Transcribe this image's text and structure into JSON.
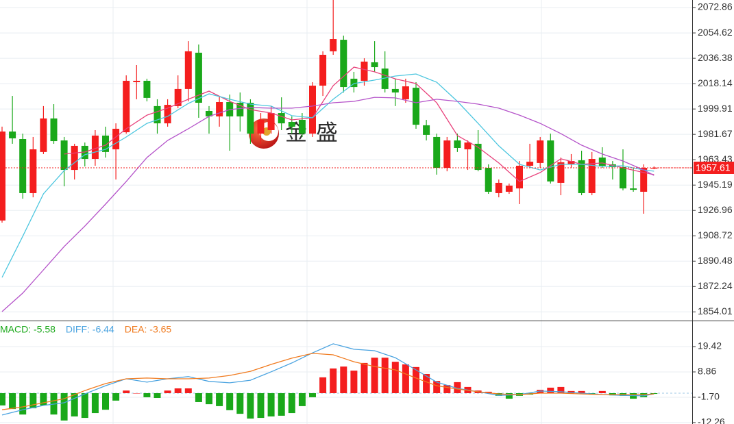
{
  "chart_data": [
    {
      "type": "candlestick",
      "up_color": "#f41e1e",
      "down_color": "#1aa81a",
      "open": [
        1919.7,
        1983.7,
        1978.3,
        1939.4,
        1969.0,
        1993.1,
        1977.3,
        1956.1,
        1973.4,
        1964.0,
        1980.8,
        1970.9,
        1983.2,
        2019.2,
        2020.2,
        2002.0,
        1989.6,
        2002.0,
        2014.3,
        2040.4,
        1998.5,
        1994.6,
        2004.9,
        2004.4,
        2004.4,
        1982.2,
        1984.7,
        1997.0,
        1990.6,
        1992.1,
        1982.2,
        2016.7,
        2041.4,
        2049.7,
        2021.7,
        2020.2,
        2033.5,
        2029.0,
        2014.3,
        2006.9,
        2015.2,
        1988.2,
        1979.8,
        1957.6,
        1977.3,
        1970.9,
        1974.9,
        1957.6,
        1939.4,
        1940.4,
        1942.8,
        1959.1,
        1961.1,
        1977.3,
        1946.8,
        1960.1,
        1963.0,
        1939.4,
        1965.0,
        1960.1,
        1958.1,
        1942.8,
        1940.4,
        1957.2
      ],
      "high": [
        1987.2,
        2009.3,
        1982.2,
        1979.8,
        2002.0,
        2003.4,
        1979.8,
        1974.9,
        1975.8,
        1984.7,
        1987.2,
        1989.6,
        2024.1,
        2031.5,
        2021.7,
        2006.9,
        2006.9,
        2024.1,
        2048.7,
        2046.3,
        2002.0,
        2009.3,
        2010.3,
        2011.8,
        2006.9,
        1997.0,
        2002.0,
        2008.3,
        1994.6,
        1997.0,
        2019.2,
        2041.4,
        2078.3,
        2052.7,
        2026.6,
        2036.4,
        2048.7,
        2041.4,
        2021.7,
        2021.7,
        2019.2,
        1992.1,
        1982.2,
        1979.8,
        1982.2,
        1977.3,
        1984.7,
        1960.1,
        1949.2,
        1946.3,
        1962.5,
        1974.9,
        1979.8,
        1982.2,
        1965.0,
        1967.5,
        1969.9,
        1969.0,
        1972.4,
        1962.5,
        1970.9,
        1957.6,
        1960.1,
        1958.6
      ],
      "low": [
        1918.2,
        1974.9,
        1935.4,
        1936.4,
        1967.5,
        1974.9,
        1944.3,
        1949.2,
        1958.6,
        1959.1,
        1965.0,
        1949.2,
        1982.2,
        2006.9,
        2005.4,
        1982.2,
        1987.2,
        2000.5,
        2005.4,
        1993.6,
        1982.2,
        1987.2,
        1969.9,
        1983.7,
        1974.9,
        1974.9,
        1982.2,
        1984.7,
        1982.2,
        1979.8,
        1979.8,
        2009.3,
        2038.9,
        2011.8,
        2011.8,
        2016.7,
        2026.6,
        2011.8,
        2002.0,
        2004.4,
        1985.7,
        1977.3,
        1952.7,
        1955.1,
        1969.0,
        1956.1,
        1955.1,
        1938.9,
        1936.4,
        1938.9,
        1931.5,
        1957.6,
        1957.6,
        1946.3,
        1937.9,
        1957.6,
        1937.9,
        1937.9,
        1957.6,
        1949.2,
        1941.4,
        1940.4,
        1924.6,
        1956.6
      ],
      "close": [
        1983.7,
        1978.8,
        1939.4,
        1970.9,
        1993.1,
        1976.8,
        1956.1,
        1973.4,
        1964.0,
        1980.8,
        1969.0,
        1985.7,
        2020.2,
        2020.2,
        2007.9,
        1989.6,
        2002.9,
        2014.3,
        2041.4,
        2004.4,
        1994.6,
        2004.9,
        1994.6,
        1994.6,
        1982.2,
        1992.1,
        1997.0,
        1989.6,
        1987.2,
        1982.2,
        2016.7,
        2038.9,
        2050.2,
        2015.7,
        2015.7,
        2034.0,
        2030.0,
        2014.3,
        2011.8,
        2016.2,
        1988.6,
        1981.3,
        1957.6,
        1977.3,
        1971.9,
        1975.8,
        1956.1,
        1940.4,
        1946.8,
        1944.8,
        1959.1,
        1962.0,
        1977.3,
        1947.8,
        1961.6,
        1962.5,
        1939.4,
        1964.0,
        1959.1,
        1958.1,
        1942.8,
        1941.8,
        1957.6,
        1957.61
      ],
      "lines": [
        {
          "color": "#e8407a",
          "x": [
            6,
            8,
            10,
            12,
            14,
            16,
            18,
            20,
            22,
            24,
            26,
            28,
            30,
            32,
            34,
            36,
            38,
            40,
            42,
            44,
            46,
            48,
            50,
            52,
            54,
            56,
            58,
            60,
            62,
            63
          ],
          "values": [
            1967.5,
            1969.0,
            1973.9,
            1985.7,
            1995.5,
            2000.5,
            2006.9,
            2012.8,
            2005.4,
            1999.5,
            1997.0,
            1992.1,
            1993.6,
            2016.7,
            2030.0,
            2026.6,
            2021.6,
            2018.2,
            2004.4,
            1980.8,
            1972.4,
            1961.1,
            1947.8,
            1954.2,
            1964.1,
            1960.1,
            1961.1,
            1957.6,
            1954.2,
            1952.7
          ]
        },
        {
          "color": "#4cc6df",
          "x": [
            0,
            2,
            4,
            6,
            8,
            10,
            12,
            14,
            16,
            18,
            20,
            22,
            24,
            26,
            28,
            30,
            32,
            34,
            36,
            38,
            40,
            42,
            44,
            46,
            48,
            50,
            52,
            54,
            56,
            58,
            60,
            62,
            63
          ],
          "values": [
            1878.8,
            1908.4,
            1938.9,
            1955.6,
            1967.0,
            1970.9,
            1979.8,
            1989.6,
            1994.6,
            2003.9,
            2010.8,
            2006.9,
            2003.4,
            2002.0,
            1995.1,
            1993.6,
            2006.9,
            2018.2,
            2020.7,
            2023.6,
            2025.1,
            2019.2,
            2005.4,
            1989.6,
            1973.4,
            1960.1,
            1956.1,
            1960.1,
            1960.1,
            1958.6,
            1959.1,
            1956.1,
            1955.2
          ]
        },
        {
          "color": "#b452c9",
          "x": [
            0,
            2,
            4,
            6,
            8,
            10,
            12,
            14,
            16,
            18,
            20,
            22,
            24,
            26,
            28,
            30,
            32,
            34,
            36,
            38,
            40,
            42,
            44,
            46,
            48,
            50,
            52,
            54,
            56,
            58,
            60,
            62,
            63
          ],
          "values": [
            1854.2,
            1867.5,
            1884.2,
            1901.0,
            1915.7,
            1931.5,
            1947.8,
            1965.0,
            1977.3,
            1985.7,
            1994.6,
            1999.5,
            2001.0,
            2000.5,
            2000.5,
            2002.0,
            2004.4,
            2005.4,
            2008.3,
            2007.9,
            2004.4,
            2006.9,
            2005.4,
            2003.4,
            2000.5,
            1995.5,
            1989.6,
            1982.2,
            1973.9,
            1967.5,
            1962.5,
            1956.1,
            1952.2
          ]
        }
      ],
      "ylim": [
        1848.1,
        2078.3
      ],
      "yticks": [
        2072.86,
        2054.62,
        2036.38,
        2018.14,
        1999.91,
        1981.67,
        1963.43,
        1945.19,
        1926.96,
        1908.72,
        1890.48,
        1872.24,
        1854.01
      ],
      "grid": true,
      "last_price": {
        "value": 1957.61,
        "label": "1957.61"
      },
      "watermark": "金 盛"
    },
    {
      "type": "macd",
      "up_color": "#f41e1e",
      "down_color": "#1aa81a",
      "histogram_label": "MACD: -5.58",
      "values": [
        -5.1,
        -6.6,
        -8.9,
        -6.3,
        -5.1,
        -8.9,
        -11.4,
        -9.7,
        -10.3,
        -8.3,
        -6.9,
        -3.1,
        1.1,
        0,
        -1.7,
        -2.0,
        1.1,
        2.0,
        2.0,
        -3.7,
        -4.6,
        -5.4,
        -7.1,
        -8.6,
        -10.6,
        -10.3,
        -9.7,
        -9.4,
        -8.3,
        -5.4,
        -1.7,
        6.6,
        10.3,
        11.1,
        9.4,
        12.6,
        14.8,
        14.8,
        13.1,
        12.0,
        10.9,
        8.0,
        5.1,
        3.4,
        4.6,
        2.6,
        1.1,
        0.6,
        -1.1,
        -2.3,
        -1.1,
        -0.6,
        1.4,
        2.3,
        2.6,
        0.9,
        0.9,
        -0.6,
        0.9,
        -0.9,
        -1.1,
        -2.3,
        -1.7,
        -0.3
      ],
      "series": [
        {
          "name": "DIFF: -6.44",
          "color": "#4aa3e0",
          "x": [
            0,
            2,
            4,
            6,
            8,
            10,
            12,
            14,
            16,
            18,
            20,
            22,
            24,
            26,
            28,
            30,
            32,
            34,
            36,
            38,
            40,
            42,
            44,
            46,
            48,
            50,
            52,
            54,
            56,
            58,
            60,
            62,
            63
          ],
          "values": [
            -9.1,
            -6.9,
            -5.1,
            -4.0,
            -0.3,
            3.1,
            6.0,
            4.6,
            6.0,
            6.9,
            4.9,
            4.3,
            5.4,
            8.9,
            12.6,
            16.8,
            20.6,
            18.3,
            17.7,
            14.8,
            9.7,
            4.6,
            2.0,
            0.6,
            -0.9,
            -0.6,
            0.9,
            0.6,
            0,
            -0.6,
            -0.9,
            -1.1,
            -0.3
          ]
        },
        {
          "name": "DEA: -3.65",
          "color": "#f07a1e",
          "x": [
            0,
            2,
            4,
            6,
            8,
            10,
            12,
            14,
            16,
            18,
            20,
            22,
            24,
            26,
            28,
            30,
            32,
            34,
            36,
            38,
            40,
            42,
            44,
            46,
            48,
            50,
            52,
            54,
            56,
            58,
            60,
            62,
            63
          ],
          "values": [
            -6.9,
            -5.7,
            -4.0,
            -2.3,
            1.1,
            4.0,
            6.0,
            6.3,
            6.0,
            6.0,
            6.3,
            7.4,
            9.1,
            12.0,
            14.6,
            16.6,
            16.0,
            13.1,
            11.1,
            9.7,
            6.3,
            3.1,
            1.7,
            0.6,
            -0.3,
            -0.6,
            0,
            0,
            -0.3,
            -0.6,
            -0.6,
            -0.6,
            -0.3
          ]
        }
      ],
      "ylim": [
        -12.85,
        29.7
      ],
      "yticks": [
        19.42,
        8.86,
        {
          "value": -1.7,
          "label": "-1.70"
        },
        -12.26
      ],
      "grid": true
    }
  ]
}
